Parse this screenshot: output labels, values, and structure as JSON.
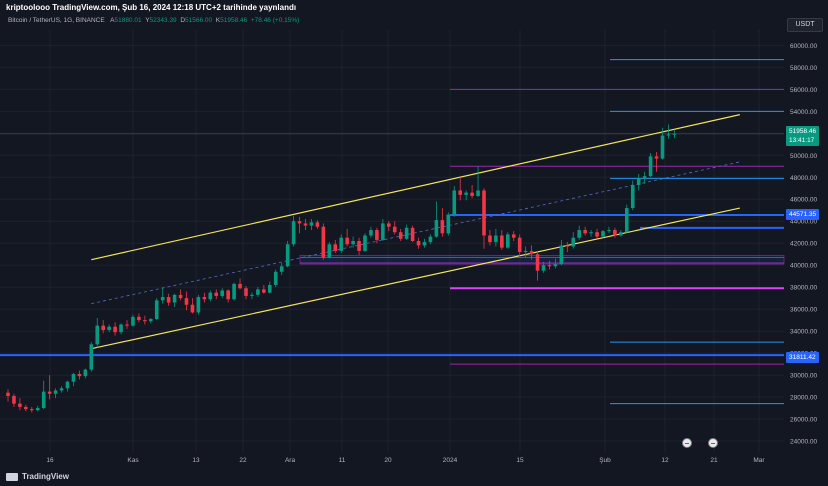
{
  "header": {
    "title": "kriptoolooo TradingView.com, Şub 16, 2024 12:18 UTC+2 tarihinde yaynlandı",
    "symbol": "Bitcoin / TetherUS, 1G, BINANCE",
    "ohlc": {
      "open_label": "A",
      "open": "51880.01",
      "high_label": "Y",
      "high": "52343.39",
      "low_label": "D",
      "low": "51566.00",
      "close_label": "K",
      "close": "51958.46",
      "change": "+78.46 (+0.15%)"
    }
  },
  "currency": "USDT",
  "price_tags": {
    "current_price": "51958.46",
    "countdown": "13:41:17",
    "level_a": "44571.35",
    "level_b": "31811.42"
  },
  "footer": {
    "brand": "TradingView"
  },
  "colors": {
    "background": "#131722",
    "up": "#089981",
    "down": "#f23645",
    "channel": "#f3e45c",
    "blue_level": "#2962ff",
    "purple_level": "#9c27b0",
    "magenta_level": "#e040fb",
    "light_blue_level": "#2196f3",
    "grid": "#1e222d"
  },
  "chart_data": {
    "type": "candlestick",
    "title": "Bitcoin / TetherUS, 1G, BINANCE",
    "x_ticks": [
      "16",
      "Kas",
      "13",
      "22",
      "Ara",
      "11",
      "20",
      "2024",
      "15",
      "Şub",
      "12",
      "21",
      "Mar"
    ],
    "y_ticks": [
      24000,
      26000,
      28000,
      30000,
      32000,
      34000,
      36000,
      38000,
      40000,
      42000,
      44000,
      46000,
      48000,
      50000,
      52000,
      54000,
      56000,
      58000,
      60000
    ],
    "ylim": [
      23000,
      61400
    ],
    "grid": true,
    "last_price": 51958.46,
    "candles": [
      {
        "o": 28400,
        "h": 28700,
        "l": 27600,
        "c": 28100
      },
      {
        "o": 28100,
        "h": 28300,
        "l": 27100,
        "c": 27400
      },
      {
        "o": 27400,
        "h": 27900,
        "l": 26800,
        "c": 27100
      },
      {
        "o": 27100,
        "h": 27300,
        "l": 26700,
        "c": 26900
      },
      {
        "o": 26900,
        "h": 27100,
        "l": 26600,
        "c": 26800
      },
      {
        "o": 26800,
        "h": 27200,
        "l": 26700,
        "c": 27000
      },
      {
        "o": 27000,
        "h": 29500,
        "l": 26900,
        "c": 28500
      },
      {
        "o": 28500,
        "h": 30000,
        "l": 27800,
        "c": 28300
      },
      {
        "o": 28300,
        "h": 28800,
        "l": 27900,
        "c": 28600
      },
      {
        "o": 28600,
        "h": 29000,
        "l": 28400,
        "c": 28800
      },
      {
        "o": 28800,
        "h": 29500,
        "l": 28500,
        "c": 29400
      },
      {
        "o": 29400,
        "h": 30200,
        "l": 29000,
        "c": 30100
      },
      {
        "o": 30100,
        "h": 30400,
        "l": 29600,
        "c": 29900
      },
      {
        "o": 29900,
        "h": 30600,
        "l": 29700,
        "c": 30500
      },
      {
        "o": 30500,
        "h": 33000,
        "l": 30300,
        "c": 32800
      },
      {
        "o": 32800,
        "h": 35200,
        "l": 32500,
        "c": 34500
      },
      {
        "o": 34500,
        "h": 35000,
        "l": 33800,
        "c": 34100
      },
      {
        "o": 34100,
        "h": 34600,
        "l": 33900,
        "c": 34400
      },
      {
        "o": 34400,
        "h": 34800,
        "l": 33600,
        "c": 33900
      },
      {
        "o": 33900,
        "h": 34700,
        "l": 33700,
        "c": 34600
      },
      {
        "o": 34600,
        "h": 35000,
        "l": 34200,
        "c": 34500
      },
      {
        "o": 34500,
        "h": 35500,
        "l": 34400,
        "c": 35300
      },
      {
        "o": 35300,
        "h": 35600,
        "l": 34800,
        "c": 35000
      },
      {
        "o": 35000,
        "h": 35400,
        "l": 34600,
        "c": 34900
      },
      {
        "o": 34900,
        "h": 35200,
        "l": 34700,
        "c": 35100
      },
      {
        "o": 35100,
        "h": 37000,
        "l": 35000,
        "c": 36800
      },
      {
        "o": 36800,
        "h": 38000,
        "l": 36500,
        "c": 37100
      },
      {
        "o": 37100,
        "h": 37400,
        "l": 36300,
        "c": 36600
      },
      {
        "o": 36600,
        "h": 37400,
        "l": 36200,
        "c": 37300
      },
      {
        "o": 37300,
        "h": 37800,
        "l": 36800,
        "c": 37000
      },
      {
        "o": 37000,
        "h": 37600,
        "l": 35900,
        "c": 36400
      },
      {
        "o": 36400,
        "h": 37000,
        "l": 35600,
        "c": 35700
      },
      {
        "o": 35700,
        "h": 37300,
        "l": 35500,
        "c": 37100
      },
      {
        "o": 37100,
        "h": 37500,
        "l": 36600,
        "c": 36900
      },
      {
        "o": 36900,
        "h": 37700,
        "l": 36700,
        "c": 37500
      },
      {
        "o": 37500,
        "h": 37800,
        "l": 36900,
        "c": 37200
      },
      {
        "o": 37200,
        "h": 37900,
        "l": 37000,
        "c": 37700
      },
      {
        "o": 37700,
        "h": 37800,
        "l": 36600,
        "c": 36900
      },
      {
        "o": 36900,
        "h": 38400,
        "l": 36800,
        "c": 38300
      },
      {
        "o": 38300,
        "h": 38800,
        "l": 37800,
        "c": 37900
      },
      {
        "o": 37900,
        "h": 38100,
        "l": 36900,
        "c": 37200
      },
      {
        "o": 37200,
        "h": 37500,
        "l": 36900,
        "c": 37300
      },
      {
        "o": 37300,
        "h": 38000,
        "l": 37100,
        "c": 37800
      },
      {
        "o": 37800,
        "h": 38200,
        "l": 37400,
        "c": 37500
      },
      {
        "o": 37500,
        "h": 38500,
        "l": 37400,
        "c": 38200
      },
      {
        "o": 38200,
        "h": 39600,
        "l": 38000,
        "c": 39400
      },
      {
        "o": 39400,
        "h": 40200,
        "l": 39100,
        "c": 39900
      },
      {
        "o": 39900,
        "h": 42200,
        "l": 39800,
        "c": 41900
      },
      {
        "o": 41900,
        "h": 44500,
        "l": 41700,
        "c": 44000
      },
      {
        "o": 44000,
        "h": 44400,
        "l": 42900,
        "c": 43800
      },
      {
        "o": 43800,
        "h": 44200,
        "l": 43200,
        "c": 43600
      },
      {
        "o": 43600,
        "h": 44200,
        "l": 43200,
        "c": 43900
      },
      {
        "o": 43900,
        "h": 44100,
        "l": 43300,
        "c": 43500
      },
      {
        "o": 43500,
        "h": 43800,
        "l": 40500,
        "c": 40700
      },
      {
        "o": 40700,
        "h": 42100,
        "l": 40600,
        "c": 41900
      },
      {
        "o": 41900,
        "h": 42300,
        "l": 41100,
        "c": 41300
      },
      {
        "o": 41300,
        "h": 42800,
        "l": 41100,
        "c": 42500
      },
      {
        "o": 42500,
        "h": 43300,
        "l": 41700,
        "c": 41900
      },
      {
        "o": 41900,
        "h": 42600,
        "l": 41600,
        "c": 42200
      },
      {
        "o": 42200,
        "h": 42500,
        "l": 40900,
        "c": 41300
      },
      {
        "o": 41300,
        "h": 42900,
        "l": 41200,
        "c": 42700
      },
      {
        "o": 42700,
        "h": 43500,
        "l": 42500,
        "c": 43200
      },
      {
        "o": 43200,
        "h": 43400,
        "l": 42000,
        "c": 42300
      },
      {
        "o": 42300,
        "h": 44200,
        "l": 42200,
        "c": 43800
      },
      {
        "o": 43800,
        "h": 44000,
        "l": 43100,
        "c": 43500
      },
      {
        "o": 43500,
        "h": 44000,
        "l": 42800,
        "c": 43000
      },
      {
        "o": 43000,
        "h": 43300,
        "l": 42200,
        "c": 42400
      },
      {
        "o": 42400,
        "h": 43700,
        "l": 42300,
        "c": 43400
      },
      {
        "o": 43400,
        "h": 43600,
        "l": 42100,
        "c": 42200
      },
      {
        "o": 42200,
        "h": 42500,
        "l": 41500,
        "c": 41800
      },
      {
        "o": 41800,
        "h": 42400,
        "l": 41600,
        "c": 42100
      },
      {
        "o": 42100,
        "h": 42800,
        "l": 41900,
        "c": 42600
      },
      {
        "o": 42600,
        "h": 45800,
        "l": 42500,
        "c": 44100
      },
      {
        "o": 44100,
        "h": 45200,
        "l": 42600,
        "c": 42900
      },
      {
        "o": 42900,
        "h": 44800,
        "l": 42700,
        "c": 44600
      },
      {
        "o": 44600,
        "h": 47200,
        "l": 44400,
        "c": 46800
      },
      {
        "o": 46800,
        "h": 48000,
        "l": 45900,
        "c": 46400
      },
      {
        "o": 46400,
        "h": 46800,
        "l": 45900,
        "c": 46600
      },
      {
        "o": 46600,
        "h": 47300,
        "l": 46100,
        "c": 46300
      },
      {
        "o": 46300,
        "h": 49000,
        "l": 46200,
        "c": 46800
      },
      {
        "o": 46800,
        "h": 47000,
        "l": 41500,
        "c": 42700
      },
      {
        "o": 42700,
        "h": 43200,
        "l": 41800,
        "c": 42100
      },
      {
        "o": 42100,
        "h": 43300,
        "l": 41700,
        "c": 42700
      },
      {
        "o": 42700,
        "h": 43200,
        "l": 41400,
        "c": 41600
      },
      {
        "o": 41600,
        "h": 43000,
        "l": 41500,
        "c": 42800
      },
      {
        "o": 42800,
        "h": 43100,
        "l": 42200,
        "c": 42500
      },
      {
        "o": 42500,
        "h": 42800,
        "l": 40800,
        "c": 41200
      },
      {
        "o": 41200,
        "h": 41700,
        "l": 40700,
        "c": 41300
      },
      {
        "o": 41300,
        "h": 41800,
        "l": 40500,
        "c": 41000
      },
      {
        "o": 41000,
        "h": 41300,
        "l": 38600,
        "c": 39500
      },
      {
        "o": 39500,
        "h": 40300,
        "l": 39300,
        "c": 40000
      },
      {
        "o": 40000,
        "h": 40400,
        "l": 39600,
        "c": 39900
      },
      {
        "o": 39900,
        "h": 40600,
        "l": 39700,
        "c": 40100
      },
      {
        "o": 40100,
        "h": 42300,
        "l": 40000,
        "c": 41800
      },
      {
        "o": 41800,
        "h": 42100,
        "l": 41200,
        "c": 41700
      },
      {
        "o": 41700,
        "h": 43000,
        "l": 41500,
        "c": 42500
      },
      {
        "o": 42500,
        "h": 43600,
        "l": 42300,
        "c": 43200
      },
      {
        "o": 43200,
        "h": 43500,
        "l": 42700,
        "c": 42900
      },
      {
        "o": 42900,
        "h": 43200,
        "l": 42600,
        "c": 43000
      },
      {
        "o": 43000,
        "h": 43300,
        "l": 42400,
        "c": 42600
      },
      {
        "o": 42600,
        "h": 43200,
        "l": 42500,
        "c": 43100
      },
      {
        "o": 43100,
        "h": 43500,
        "l": 42900,
        "c": 43200
      },
      {
        "o": 43200,
        "h": 43400,
        "l": 42500,
        "c": 42700
      },
      {
        "o": 42700,
        "h": 43200,
        "l": 42600,
        "c": 43000
      },
      {
        "o": 43000,
        "h": 45500,
        "l": 42900,
        "c": 45200
      },
      {
        "o": 45200,
        "h": 47700,
        "l": 45000,
        "c": 47300
      },
      {
        "o": 47300,
        "h": 48300,
        "l": 46800,
        "c": 47900
      },
      {
        "o": 47900,
        "h": 48500,
        "l": 47400,
        "c": 48100
      },
      {
        "o": 48100,
        "h": 50200,
        "l": 48000,
        "c": 49900
      },
      {
        "o": 49900,
        "h": 50300,
        "l": 48500,
        "c": 49700
      },
      {
        "o": 49700,
        "h": 52500,
        "l": 49600,
        "c": 51800
      },
      {
        "o": 51800,
        "h": 52800,
        "l": 51500,
        "c": 51900
      },
      {
        "o": 51900,
        "h": 52343,
        "l": 51566,
        "c": 51958
      }
    ],
    "horizontal_levels": [
      {
        "price": 58700,
        "color_key": "light_blue_level",
        "span": "right"
      },
      {
        "price": 56000,
        "color_key": "purple_level",
        "span": "mid"
      },
      {
        "price": 54000,
        "color_key": "light_blue_level",
        "span": "right"
      },
      {
        "price": 49000,
        "color_key": "purple_level",
        "span": "mid"
      },
      {
        "price": 47900,
        "color_key": "light_blue_level",
        "span": "right"
      },
      {
        "price": 44571.35,
        "color_key": "blue_level",
        "span": "mid2"
      },
      {
        "price": 43400,
        "color_key": "blue_level",
        "span": "right2"
      },
      {
        "price": 40700,
        "color_key": "purple_level",
        "span": "range"
      },
      {
        "price": 40200,
        "color_key": "purple_level",
        "span": "range"
      },
      {
        "price": 37900,
        "color_key": "magenta_level",
        "span": "mid"
      },
      {
        "price": 33000,
        "color_key": "light_blue_level",
        "span": "right"
      },
      {
        "price": 31811.42,
        "color_key": "blue_level",
        "span": "full"
      },
      {
        "price": 31000,
        "color_key": "purple_level",
        "span": "mid"
      },
      {
        "price": 27400,
        "color_key": "light_blue_level",
        "span": "right"
      }
    ],
    "channel": {
      "upper": {
        "start_index": 14,
        "start_price": 40500,
        "end_index": 123,
        "end_price": 53700
      },
      "lower": {
        "start_index": 14,
        "start_price": 32400,
        "end_index": 123,
        "end_price": 45200
      },
      "mid": {
        "start_index": 14,
        "start_price": 36500,
        "end_index": 123,
        "end_price": 49400
      }
    }
  }
}
